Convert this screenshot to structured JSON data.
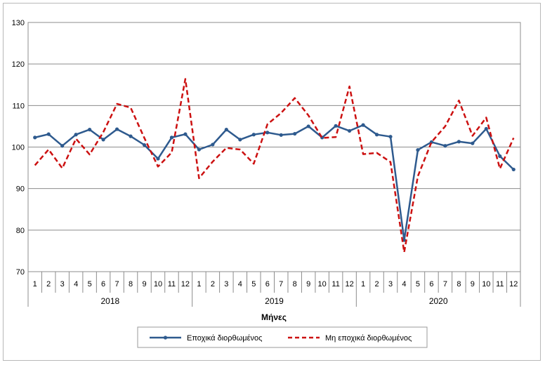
{
  "chart_data": {
    "type": "line",
    "title": "",
    "xlabel": "Μήνες",
    "ylabel": "",
    "ylim": [
      70,
      130
    ],
    "yticks": [
      70,
      80,
      90,
      100,
      110,
      120,
      130
    ],
    "grid": true,
    "legend_position": "bottom",
    "categories": [
      "1",
      "2",
      "3",
      "4",
      "5",
      "6",
      "7",
      "8",
      "9",
      "10",
      "11",
      "12",
      "1",
      "2",
      "3",
      "4",
      "5",
      "6",
      "7",
      "8",
      "9",
      "10",
      "11",
      "12",
      "1",
      "2",
      "3",
      "4",
      "5",
      "6",
      "7",
      "8",
      "9",
      "10",
      "11",
      "12"
    ],
    "years": [
      "2018",
      "2019",
      "2020"
    ],
    "series": [
      {
        "name": "Εποχικά διορθωμένος",
        "color": "#2e5a8e",
        "style": "solid-markers",
        "values": [
          102.3,
          103.1,
          100.3,
          103.0,
          104.2,
          101.8,
          104.3,
          102.6,
          100.5,
          97.2,
          102.3,
          103.1,
          99.4,
          100.6,
          104.2,
          101.8,
          103.0,
          103.5,
          102.9,
          103.2,
          105.0,
          102.3,
          105.1,
          103.9,
          105.3,
          103.0,
          102.5,
          77.6,
          99.3,
          101.2,
          100.3,
          101.3,
          100.9,
          104.4,
          97.8,
          94.6
        ]
      },
      {
        "name": "Μη εποχικά διορθωμένος",
        "color": "#cc1111",
        "style": "dashed",
        "values": [
          95.6,
          99.4,
          94.9,
          102.0,
          98.2,
          103.6,
          110.4,
          109.5,
          102.2,
          95.3,
          98.7,
          116.4,
          92.5,
          96.5,
          99.8,
          99.4,
          96.0,
          105.5,
          108.2,
          111.8,
          107.6,
          102.2,
          102.4,
          114.6,
          98.3,
          98.6,
          96.4,
          74.7,
          93.0,
          101.2,
          105.0,
          111.2,
          102.7,
          107.1,
          94.8,
          102.2
        ]
      }
    ]
  }
}
